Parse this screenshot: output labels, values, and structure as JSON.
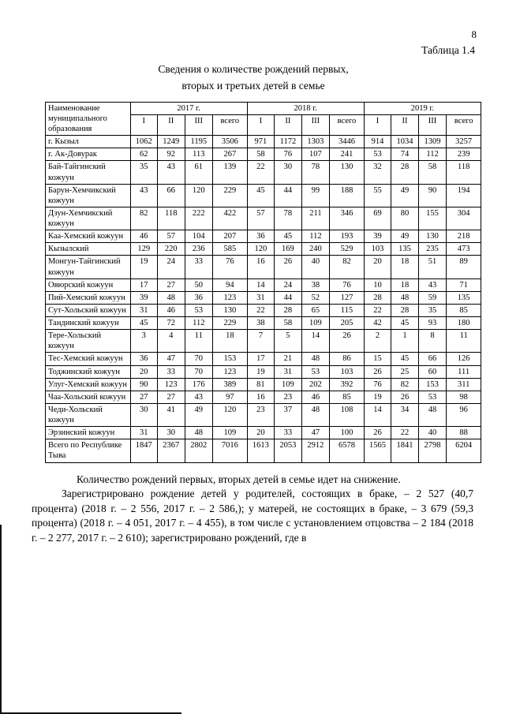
{
  "page": {
    "number": "8",
    "table_label": "Таблица 1.4",
    "title_line1": "Сведения о количестве рождений первых,",
    "title_line2": "вторых и третьих детей в семье"
  },
  "table": {
    "header": {
      "name_col": "Наименование муниципального образования",
      "years": [
        "2017 г.",
        "2018 г.",
        "2019 г."
      ],
      "subcols": [
        "I",
        "II",
        "III",
        "всего"
      ]
    },
    "rows": [
      {
        "name": "г. Кызыл",
        "values": [
          "1062",
          "1249",
          "1195",
          "3506",
          "971",
          "1172",
          "1303",
          "3446",
          "914",
          "1034",
          "1309",
          "3257"
        ]
      },
      {
        "name": "г. Ак-Довурак",
        "values": [
          "62",
          "92",
          "113",
          "267",
          "58",
          "76",
          "107",
          "241",
          "53",
          "74",
          "112",
          "239"
        ]
      },
      {
        "name": "Бай-Тайгинский кожуун",
        "values": [
          "35",
          "43",
          "61",
          "139",
          "22",
          "30",
          "78",
          "130",
          "32",
          "28",
          "58",
          "118"
        ]
      },
      {
        "name": "Барун-Хемчикский кожуун",
        "values": [
          "43",
          "66",
          "120",
          "229",
          "45",
          "44",
          "99",
          "188",
          "55",
          "49",
          "90",
          "194"
        ]
      },
      {
        "name": "Дзун-Хемчикский кожуун",
        "values": [
          "82",
          "118",
          "222",
          "422",
          "57",
          "78",
          "211",
          "346",
          "69",
          "80",
          "155",
          "304"
        ]
      },
      {
        "name": "Каа-Хемский кожуун",
        "values": [
          "46",
          "57",
          "104",
          "207",
          "36",
          "45",
          "112",
          "193",
          "39",
          "49",
          "130",
          "218"
        ]
      },
      {
        "name": "Кызылский",
        "values": [
          "129",
          "220",
          "236",
          "585",
          "120",
          "169",
          "240",
          "529",
          "103",
          "135",
          "235",
          "473"
        ]
      },
      {
        "name": "Монгун-Тайгинский кожуун",
        "values": [
          "19",
          "24",
          "33",
          "76",
          "16",
          "26",
          "40",
          "82",
          "20",
          "18",
          "51",
          "89"
        ]
      },
      {
        "name": "Овюрский кожуун",
        "values": [
          "17",
          "27",
          "50",
          "94",
          "14",
          "24",
          "38",
          "76",
          "10",
          "18",
          "43",
          "71"
        ]
      },
      {
        "name": "Пий-Хемский кожуун",
        "values": [
          "39",
          "48",
          "36",
          "123",
          "31",
          "44",
          "52",
          "127",
          "28",
          "48",
          "59",
          "135"
        ]
      },
      {
        "name": "Сут-Хольский кожуун",
        "values": [
          "31",
          "46",
          "53",
          "130",
          "22",
          "28",
          "65",
          "115",
          "22",
          "28",
          "35",
          "85"
        ]
      },
      {
        "name": "Тандинский кожуун",
        "values": [
          "45",
          "72",
          "112",
          "229",
          "38",
          "58",
          "109",
          "205",
          "42",
          "45",
          "93",
          "180"
        ]
      },
      {
        "name": "Тере-Хольский кожуун",
        "values": [
          "3",
          "4",
          "11",
          "18",
          "7",
          "5",
          "14",
          "26",
          "2",
          "1",
          "8",
          "11"
        ]
      },
      {
        "name": "Тес-Хемский кожуун",
        "values": [
          "36",
          "47",
          "70",
          "153",
          "17",
          "21",
          "48",
          "86",
          "15",
          "45",
          "66",
          "126"
        ]
      },
      {
        "name": "Тоджинский кожуун",
        "values": [
          "20",
          "33",
          "70",
          "123",
          "19",
          "31",
          "53",
          "103",
          "26",
          "25",
          "60",
          "111"
        ]
      },
      {
        "name": "Улуг-Хемский кожуун",
        "values": [
          "90",
          "123",
          "176",
          "389",
          "81",
          "109",
          "202",
          "392",
          "76",
          "82",
          "153",
          "311"
        ]
      },
      {
        "name": "Чаа-Хольский кожуун",
        "values": [
          "27",
          "27",
          "43",
          "97",
          "16",
          "23",
          "46",
          "85",
          "19",
          "26",
          "53",
          "98"
        ]
      },
      {
        "name": "Чеди-Хольский кожуун",
        "values": [
          "30",
          "41",
          "49",
          "120",
          "23",
          "37",
          "48",
          "108",
          "14",
          "34",
          "48",
          "96"
        ]
      },
      {
        "name": "Эрзинский кожуун",
        "values": [
          "31",
          "30",
          "48",
          "109",
          "20",
          "33",
          "47",
          "100",
          "26",
          "22",
          "40",
          "88"
        ]
      },
      {
        "name": "Всего по Республике Тыва",
        "values": [
          "1847",
          "2367",
          "2802",
          "7016",
          "1613",
          "2053",
          "2912",
          "6578",
          "1565",
          "1841",
          "2798",
          "6204"
        ]
      }
    ]
  },
  "body_text": {
    "lead": "Количество рождений первых, вторых детей в семье идет на снижение.",
    "paragraph": "Зарегистрировано рождение детей у родителей, состоящих в браке, – 2 527 (40,7 процента) (2018 г. – 2 556, 2017 г. – 2 586,); у матерей, не состоящих в браке, – 3 679 (59,3 процента) (2018 г. – 4 051, 2017 г. – 4 455), в том числе с установлением отцовства – 2 184 (2018 г. – 2 277, 2017 г. – 2 610); зарегистрировано рождений, где в"
  }
}
